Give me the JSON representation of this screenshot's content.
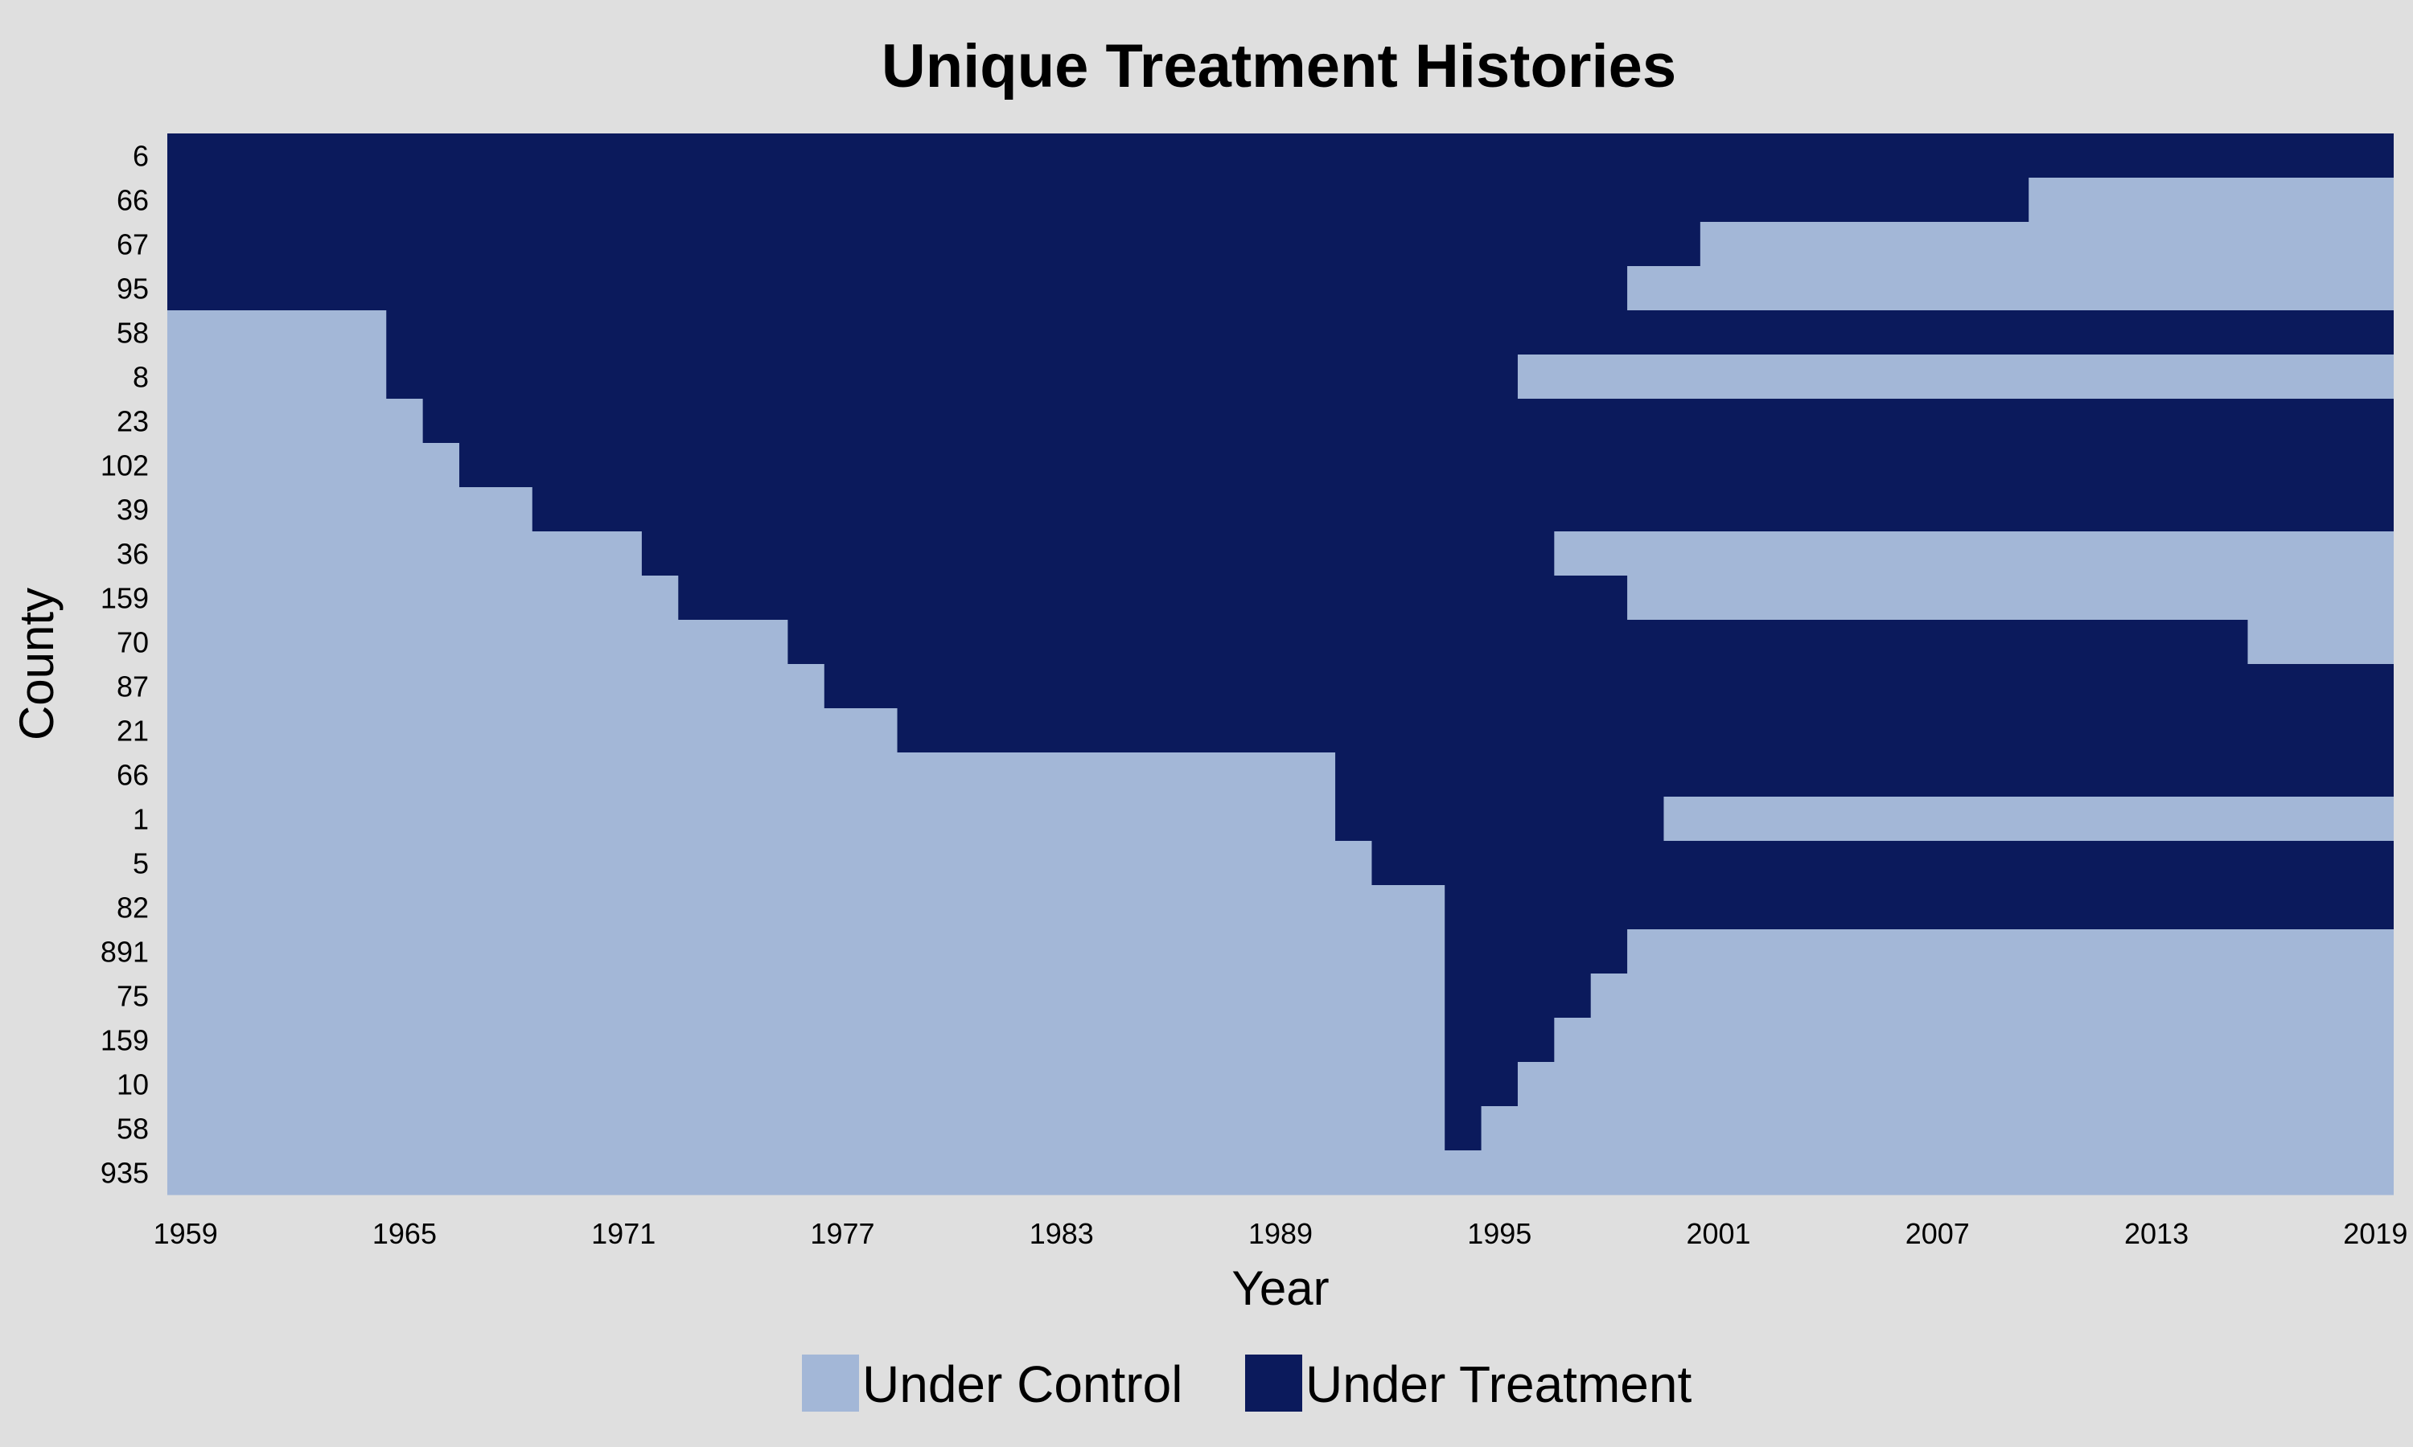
{
  "chart_data": {
    "type": "heatmap",
    "title": "Unique Treatment Histories",
    "xlabel": "Year",
    "ylabel": "County",
    "x_range": [
      1959,
      2019
    ],
    "x_ticks": [
      1959,
      1965,
      1971,
      1977,
      1983,
      1989,
      1995,
      2001,
      2007,
      2013,
      2019
    ],
    "legend_position": "bottom",
    "legend": [
      {
        "key": "control",
        "label": "Under Control",
        "color": "#a3b7d7"
      },
      {
        "key": "treatment",
        "label": "Under Treatment",
        "color": "#0b1a5c"
      }
    ],
    "rows": [
      {
        "county": "6",
        "treated_from": 1959,
        "treated_to": 2019
      },
      {
        "county": "66",
        "treated_from": 1959,
        "treated_to": 2009
      },
      {
        "county": "67",
        "treated_from": 1959,
        "treated_to": 2000
      },
      {
        "county": "95",
        "treated_from": 1959,
        "treated_to": 1998
      },
      {
        "county": "58",
        "treated_from": 1965,
        "treated_to": 2019
      },
      {
        "county": "8",
        "treated_from": 1965,
        "treated_to": 1995
      },
      {
        "county": "23",
        "treated_from": 1966,
        "treated_to": 2019
      },
      {
        "county": "102",
        "treated_from": 1967,
        "treated_to": 2019
      },
      {
        "county": "39",
        "treated_from": 1969,
        "treated_to": 2019
      },
      {
        "county": "36",
        "treated_from": 1972,
        "treated_to": 1996
      },
      {
        "county": "159",
        "treated_from": 1973,
        "treated_to": 1998
      },
      {
        "county": "70",
        "treated_from": 1976,
        "treated_to": 2015
      },
      {
        "county": "87",
        "treated_from": 1977,
        "treated_to": 2019
      },
      {
        "county": "21",
        "treated_from": 1979,
        "treated_to": 2019
      },
      {
        "county": "66",
        "treated_from": 1991,
        "treated_to": 2019
      },
      {
        "county": "1",
        "treated_from": 1991,
        "treated_to": 1999
      },
      {
        "county": "5",
        "treated_from": 1992,
        "treated_to": 2019
      },
      {
        "county": "82",
        "treated_from": 1994,
        "treated_to": 2019
      },
      {
        "county": "891",
        "treated_from": 1994,
        "treated_to": 1998
      },
      {
        "county": "75",
        "treated_from": 1994,
        "treated_to": 1997
      },
      {
        "county": "159",
        "treated_from": 1994,
        "treated_to": 1996
      },
      {
        "county": "10",
        "treated_from": 1994,
        "treated_to": 1995
      },
      {
        "county": "58",
        "treated_from": 1994,
        "treated_to": 1994
      },
      {
        "county": "935",
        "treated_from": null,
        "treated_to": null
      }
    ]
  }
}
